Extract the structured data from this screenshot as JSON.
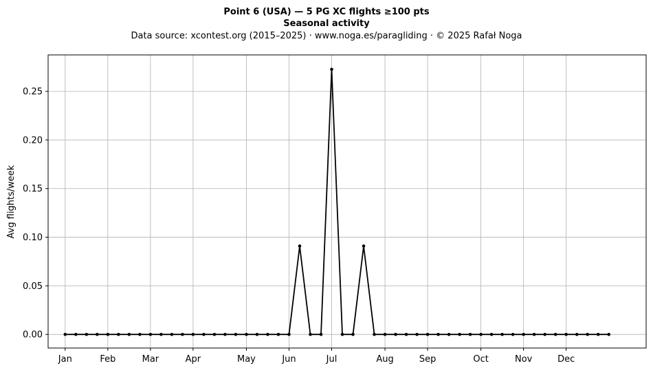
{
  "chart_data": {
    "type": "line",
    "title": "Point 6 (USA)  —  5 PG XC flights ≥100 pts",
    "subtitle": "Seasonal activity",
    "source": "Data source: xcontest.org (2015–2025)  ·  www.noga.es/paragliding  ·  © 2025 Rafał Noga",
    "xlabel": "",
    "ylabel": "Avg flights/week",
    "x_unit": "week of year",
    "xlim": [
      -1.6,
      54.5
    ],
    "ylim": [
      -0.014,
      0.2875
    ],
    "grid": true,
    "x_ticks": [
      {
        "label": "Jan",
        "x": 0
      },
      {
        "label": "Feb",
        "x": 4
      },
      {
        "label": "Mar",
        "x": 8
      },
      {
        "label": "Apr",
        "x": 12
      },
      {
        "label": "May",
        "x": 17
      },
      {
        "label": "Jun",
        "x": 21
      },
      {
        "label": "Jul",
        "x": 25
      },
      {
        "label": "Aug",
        "x": 30
      },
      {
        "label": "Sep",
        "x": 34
      },
      {
        "label": "Oct",
        "x": 39
      },
      {
        "label": "Nov",
        "x": 43
      },
      {
        "label": "Dec",
        "x": 47
      }
    ],
    "y_ticks": [
      {
        "label": "0.00",
        "y": 0
      },
      {
        "label": "0.05",
        "y": 0.05
      },
      {
        "label": "0.10",
        "y": 0.1
      },
      {
        "label": "0.15",
        "y": 0.15
      },
      {
        "label": "0.20",
        "y": 0.2
      },
      {
        "label": "0.25",
        "y": 0.25
      }
    ],
    "series": [
      {
        "color": "#000000",
        "x": [
          0,
          1,
          2,
          3,
          4,
          5,
          6,
          7,
          8,
          9,
          10,
          11,
          12,
          13,
          14,
          15,
          16,
          17,
          18,
          19,
          20,
          21,
          22,
          23,
          24,
          25,
          26,
          27,
          28,
          29,
          30,
          31,
          32,
          33,
          34,
          35,
          36,
          37,
          38,
          39,
          40,
          41,
          42,
          43,
          44,
          45,
          46,
          47,
          48,
          49,
          50,
          51
        ],
        "values": [
          0,
          0,
          0,
          0,
          0,
          0,
          0,
          0,
          0,
          0,
          0,
          0,
          0,
          0,
          0,
          0,
          0,
          0,
          0,
          0,
          0,
          0,
          0.0909,
          0,
          0,
          0.2727,
          0,
          0,
          0.0909,
          0,
          0,
          0,
          0,
          0,
          0,
          0,
          0,
          0,
          0,
          0,
          0,
          0,
          0,
          0,
          0,
          0,
          0,
          0,
          0,
          0,
          0,
          0
        ]
      }
    ]
  }
}
